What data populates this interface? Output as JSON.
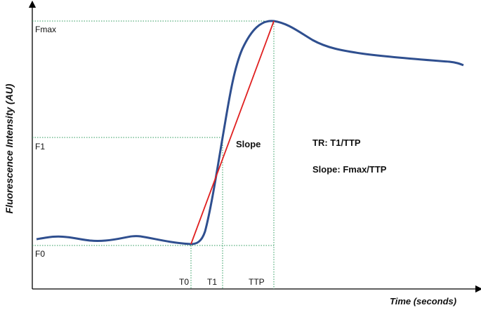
{
  "axes": {
    "y_label": "Fluorescence Intensity (AU)",
    "x_label": "Time (seconds)"
  },
  "y_levels": [
    "Fmax",
    "F1",
    "F0"
  ],
  "x_levels": [
    "T0",
    "T1",
    "TTP"
  ],
  "annotations": {
    "slope": "Slope",
    "tr_formula": "TR: T1/TTP",
    "slope_formula": "Slope: Fmax/TTP"
  }
}
